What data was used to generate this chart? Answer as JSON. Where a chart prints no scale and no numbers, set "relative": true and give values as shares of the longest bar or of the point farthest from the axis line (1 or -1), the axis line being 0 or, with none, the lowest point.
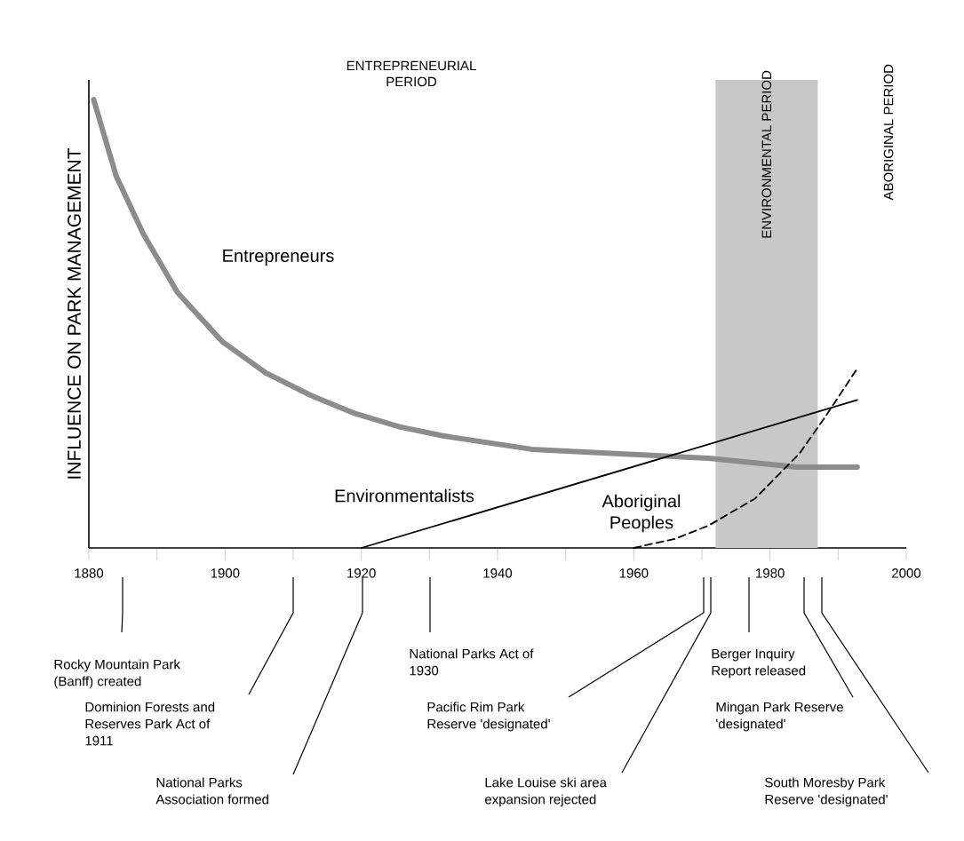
{
  "chart_data": {
    "type": "line",
    "relative": true,
    "ylabel": "INFLUENCE ON PARK MANAGEMENT",
    "xlim": [
      1880,
      2000
    ],
    "xticks": [
      1880,
      {
        "value": 1890,
        "label": null
      },
      1900,
      {
        "value": 1910,
        "label": null
      },
      1920,
      {
        "value": 1930,
        "label": null
      },
      1940,
      {
        "value": 1950,
        "label": null
      },
      1960,
      {
        "value": 1970,
        "label": null
      },
      1980,
      {
        "value": 1990,
        "label": null
      },
      2000
    ],
    "marker": "none",
    "series": [
      {
        "name": "Entrepreneurs",
        "color": "#8c8c8c",
        "line_style": "solid",
        "x": [
          1880.7,
          1884,
          1888,
          1893,
          1899.6,
          1906,
          1912.6,
          1919,
          1925.6,
          1932,
          1945,
          1958,
          1971,
          1984,
          1992.8
        ],
        "values": [
          1.0,
          0.83,
          0.7,
          0.57,
          0.46,
          0.39,
          0.34,
          0.3,
          0.27,
          0.25,
          0.22,
          0.21,
          0.2,
          0.18,
          0.18
        ]
      },
      {
        "name": "Environmentalists",
        "color": "#000000",
        "line_style": "solid",
        "x": [
          1920,
          1992.8
        ],
        "values": [
          0,
          0.33
        ]
      },
      {
        "name": "Aboriginal Peoples",
        "color": "#000000",
        "line_style": "dashed",
        "x": [
          1960,
          1966,
          1971,
          1977.8,
          1984.3,
          1988,
          1992.8
        ],
        "values": [
          0,
          0.02,
          0.05,
          0.11,
          0.21,
          0.29,
          0.4
        ]
      }
    ],
    "bands": [
      {
        "axis": "x",
        "from": 1972,
        "to": 1987,
        "label": "ENVIRONMENTAL PERIOD",
        "color": "#c8c8c8"
      }
    ],
    "annotations": [
      "ENTREPRENEURIAL PERIOD",
      "ABORIGINAL PERIOD",
      "Rocky Mountain Park (Banff) created",
      "Dominion Forests and Reserves Park Act of 1911",
      "National Parks Association formed",
      "National Parks Act of 1930",
      "Pacific Rim Park Reserve 'designated'",
      "Lake Louise ski area expansion rejected",
      "Berger Inquiry Report released",
      "Mingan Park Reserve 'designated'",
      "South Moresby Park Reserve 'designated'"
    ]
  }
}
